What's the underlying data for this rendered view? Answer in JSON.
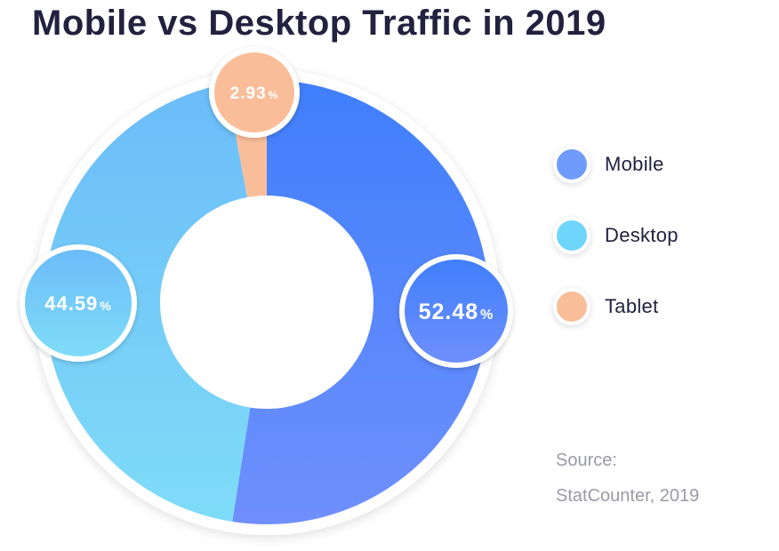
{
  "chart_data": {
    "type": "donut",
    "title": "Mobile vs Desktop Traffic in 2019",
    "unit": "%",
    "slices": [
      {
        "name": "Mobile",
        "value": 52.48,
        "label": "52.48",
        "color_start": "#3f7ffb",
        "color_end": "#6f8ffd",
        "badge_position": "right"
      },
      {
        "name": "Desktop",
        "value": 44.59,
        "label": "44.59",
        "color_start": "#6bbcf9",
        "color_end": "#7fdcf8",
        "badge_position": "left"
      },
      {
        "name": "Tablet",
        "value": 2.93,
        "label": "2.93",
        "color_start": "#f9be99",
        "color_end": "#f9be99",
        "badge_position": "top"
      }
    ],
    "legend_placement": "right",
    "source_lines": [
      "Source:",
      "StatCounter, 2019"
    ]
  },
  "legend_colors": {
    "Mobile": "#6f9cfc",
    "Desktop": "#6fd5fa",
    "Tablet": "#f9be99"
  }
}
